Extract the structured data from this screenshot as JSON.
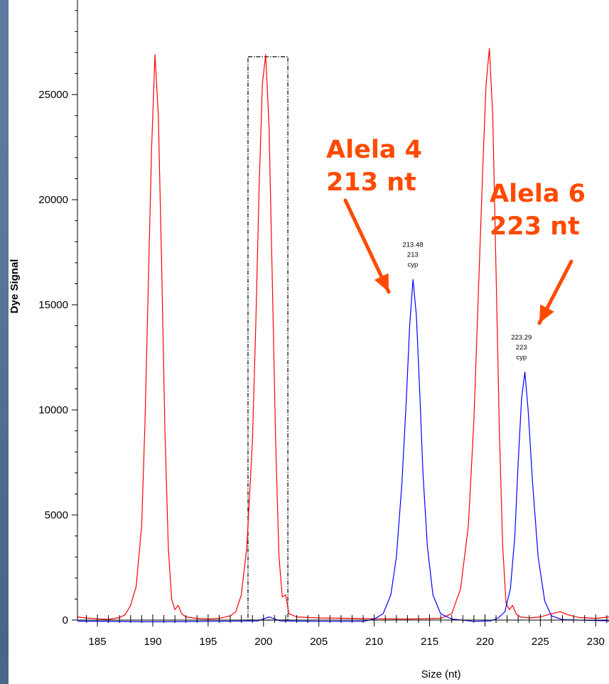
{
  "chart_data": {
    "type": "line",
    "title": "",
    "xlabel": "Size (nt)",
    "ylabel": "Dye Signal",
    "xlim": [
      183.2,
      231.2
    ],
    "ylim": [
      0,
      29500
    ],
    "x_ticks": [
      185,
      190,
      195,
      200,
      205,
      210,
      215,
      220,
      225,
      230
    ],
    "y_ticks": [
      0,
      5000,
      10000,
      15000,
      20000,
      25000
    ],
    "grid": false,
    "colors": {
      "red": "#ff0000",
      "blue": "#0000ff",
      "annotation": "#ff4a00",
      "box": "#000000"
    },
    "series": [
      {
        "color": "red",
        "x": [
          183.2,
          184,
          185,
          186,
          187,
          187.5,
          188,
          188.5,
          189,
          189.3,
          189.6,
          189.9,
          190.2,
          190.5,
          190.8,
          191.1,
          191.4,
          191.7,
          192,
          192.3,
          192.6,
          193,
          194,
          195,
          196,
          197,
          197.5,
          198,
          198.5,
          199,
          199.3,
          199.6,
          199.9,
          200.2,
          200.5,
          200.8,
          201.1,
          201.4,
          201.7,
          202,
          202.3,
          203,
          205,
          208,
          210,
          213,
          216,
          217,
          217.8,
          218.5,
          219,
          219.4,
          219.8,
          220.1,
          220.4,
          220.7,
          221,
          221.3,
          221.6,
          221.9,
          222.2,
          222.5,
          222.8,
          223.2,
          224,
          225,
          226,
          226.8,
          227.5,
          228.5,
          230,
          231.2
        ],
        "y": [
          150,
          100,
          60,
          30,
          120,
          250,
          700,
          1600,
          4500,
          9500,
          16000,
          22500,
          26900,
          24000,
          17000,
          9000,
          3500,
          1000,
          500,
          700,
          300,
          150,
          80,
          50,
          80,
          200,
          400,
          1200,
          3500,
          8500,
          14000,
          20500,
          25500,
          26900,
          23500,
          16000,
          8500,
          3000,
          1100,
          1200,
          300,
          150,
          100,
          80,
          60,
          50,
          80,
          300,
          1500,
          4500,
          9500,
          15500,
          21500,
          25500,
          27200,
          24000,
          16500,
          9000,
          3500,
          800,
          500,
          700,
          300,
          150,
          100,
          150,
          300,
          400,
          250,
          120,
          80,
          150
        ]
      },
      {
        "color": "blue",
        "x": [
          183.2,
          190,
          195,
          199.5,
          200.5,
          201.5,
          205,
          209,
          210,
          210.8,
          211.5,
          212,
          212.5,
          212.9,
          213.2,
          213.5,
          213.8,
          214.1,
          214.4,
          214.8,
          215.3,
          216,
          217,
          219,
          220.5,
          221.2,
          221.8,
          222.3,
          222.7,
          223,
          223.3,
          223.6,
          223.9,
          224.3,
          224.8,
          225.4,
          226,
          227,
          231.2
        ],
        "y": [
          -50,
          -80,
          -60,
          -40,
          150,
          -40,
          -60,
          -60,
          50,
          300,
          1200,
          3000,
          6500,
          10500,
          14000,
          16200,
          14500,
          11000,
          7000,
          3500,
          1200,
          300,
          50,
          -60,
          -40,
          100,
          400,
          1500,
          4000,
          7500,
          10500,
          11800,
          10000,
          6500,
          3000,
          900,
          200,
          20,
          -40
        ]
      }
    ],
    "peak_labels": [
      {
        "x": 213.48,
        "y": 16200,
        "lines": [
          "213.48",
          "213",
          "cyp"
        ]
      },
      {
        "x": 223.29,
        "y": 11800,
        "lines": [
          "223.29",
          "223",
          "cyp"
        ]
      }
    ],
    "selection_box": {
      "x0": 198.6,
      "x1": 202.2,
      "y0": 0,
      "y1": 26800
    },
    "annotations": [
      {
        "lines": [
          "Alela 4",
          "213 nt"
        ]
      },
      {
        "lines": [
          "Alela 6",
          "223 nt"
        ]
      }
    ]
  }
}
